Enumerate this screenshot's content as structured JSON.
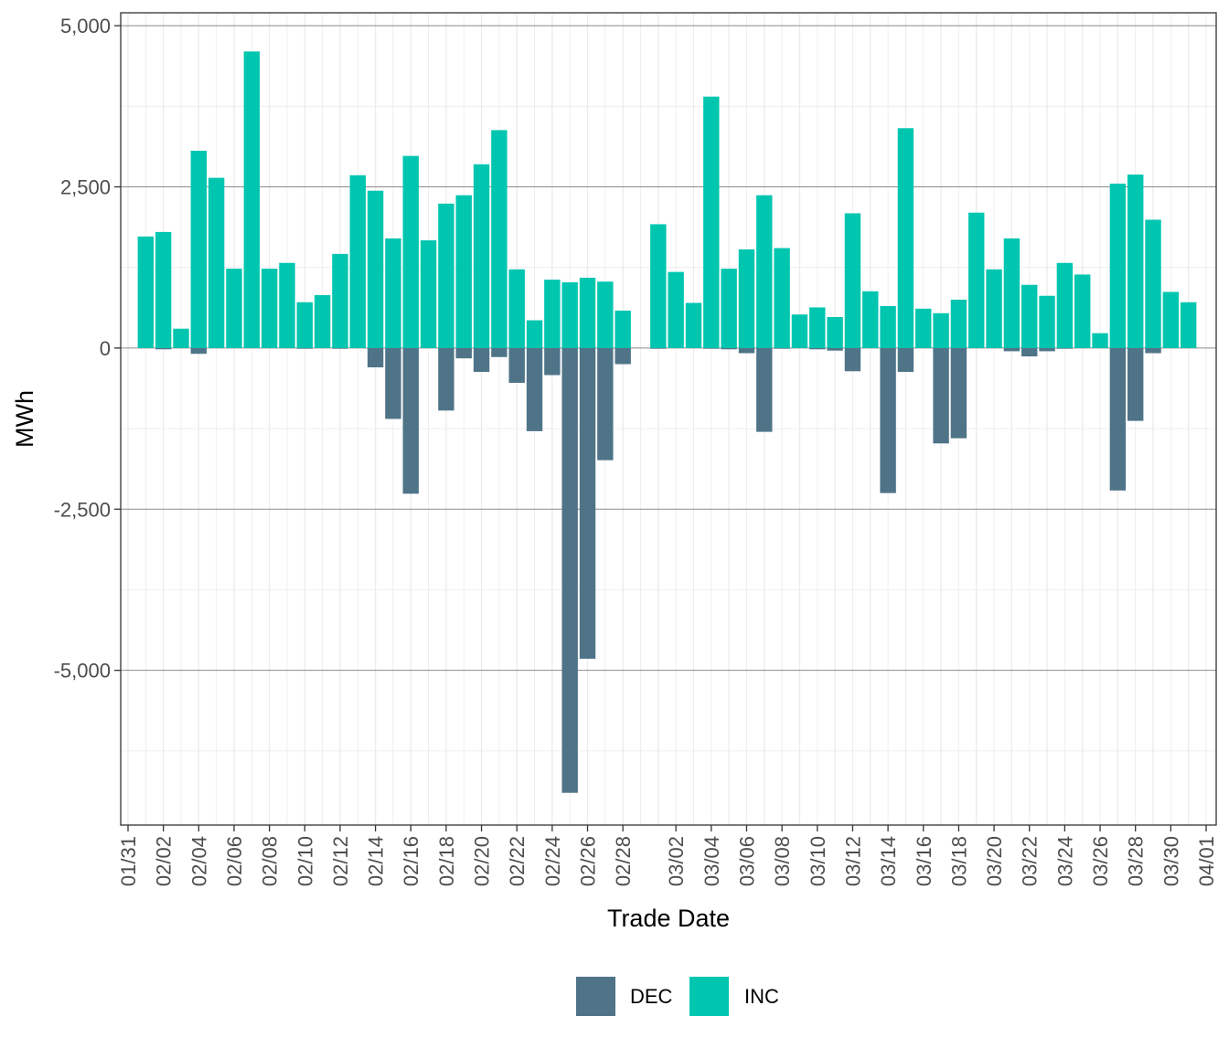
{
  "chart_data": {
    "type": "bar",
    "xlabel": "Trade Date",
    "ylabel": "MWh",
    "x_tick_labels": [
      "01/31",
      "02/02",
      "02/04",
      "02/06",
      "02/08",
      "02/10",
      "02/12",
      "02/14",
      "02/16",
      "02/18",
      "02/20",
      "02/22",
      "02/24",
      "02/26",
      "02/28",
      "03/02",
      "03/04",
      "03/06",
      "03/08",
      "03/10",
      "03/12",
      "03/14",
      "03/16",
      "03/18",
      "03/20",
      "03/22",
      "03/24",
      "03/26",
      "03/28",
      "03/30",
      "04/01"
    ],
    "y_tick_labels": [
      "5,000",
      "2,500",
      "0",
      "-2,500",
      "-5,000"
    ],
    "y_ticks": [
      5000,
      2500,
      0,
      -2500,
      -5000
    ],
    "ylim": [
      -7400,
      5200
    ],
    "xlim": [
      "01/31",
      "04/01"
    ],
    "grid": true,
    "legend_position": "bottom",
    "categories": [
      "02/01",
      "02/02",
      "02/03",
      "02/04",
      "02/05",
      "02/06",
      "02/07",
      "02/08",
      "02/09",
      "02/10",
      "02/11",
      "02/12",
      "02/13",
      "02/14",
      "02/15",
      "02/16",
      "02/17",
      "02/18",
      "02/19",
      "02/20",
      "02/21",
      "02/22",
      "02/23",
      "02/24",
      "02/25",
      "02/26",
      "02/27",
      "02/28",
      "03/01",
      "03/02",
      "03/03",
      "03/04",
      "03/05",
      "03/06",
      "03/07",
      "03/08",
      "03/09",
      "03/10",
      "03/11",
      "03/12",
      "03/13",
      "03/14",
      "03/15",
      "03/16",
      "03/17",
      "03/18",
      "03/19",
      "03/20",
      "03/21",
      "03/22",
      "03/23",
      "03/24",
      "03/25",
      "03/26",
      "03/27",
      "03/28",
      "03/29",
      "03/30",
      "03/31"
    ],
    "series": [
      {
        "name": "DEC",
        "color": "#4f7488",
        "values": [
          0,
          -20,
          0,
          -90,
          0,
          0,
          0,
          0,
          0,
          -10,
          0,
          -10,
          0,
          -300,
          -1100,
          -2260,
          0,
          -970,
          -160,
          -370,
          -140,
          -540,
          -1290,
          -420,
          -6900,
          -4820,
          -1740,
          -250,
          -10,
          0,
          0,
          -10,
          -20,
          -80,
          -1300,
          -10,
          0,
          -20,
          -40,
          -360,
          0,
          -2250,
          -370,
          0,
          -1480,
          -1400,
          0,
          0,
          -50,
          -130,
          -50,
          -10,
          0,
          0,
          -2210,
          -1130,
          -80,
          0,
          0
        ]
      },
      {
        "name": "INC",
        "color": "#00c6b0",
        "values": [
          1730,
          1800,
          300,
          3060,
          2640,
          1230,
          4600,
          1230,
          1320,
          710,
          820,
          1460,
          2680,
          2440,
          1700,
          2980,
          1670,
          2240,
          2370,
          2850,
          3380,
          1220,
          430,
          1060,
          1020,
          1090,
          1030,
          580,
          1920,
          1180,
          700,
          3900,
          1230,
          1530,
          2370,
          1550,
          520,
          630,
          480,
          2090,
          880,
          650,
          3410,
          610,
          540,
          750,
          2100,
          1220,
          1700,
          980,
          810,
          1320,
          1140,
          230,
          2550,
          2690,
          1990,
          870,
          710
        ]
      }
    ]
  }
}
